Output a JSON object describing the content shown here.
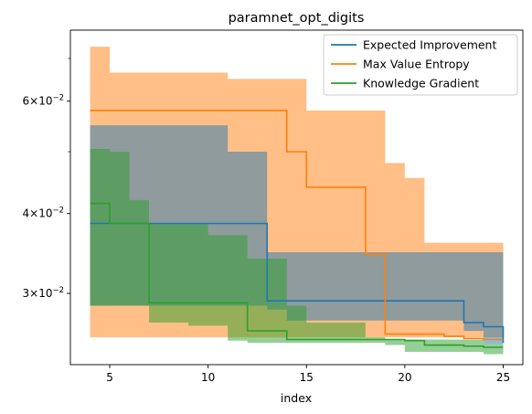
{
  "chart_data": {
    "type": "line",
    "title": "paramnet_opt_digits",
    "xlabel": "index",
    "ylabel": "",
    "yscale": "log",
    "xlim": [
      3.0,
      26.0
    ],
    "ylim": [
      0.0232,
      0.0775
    ],
    "x_ticks": [
      5,
      10,
      15,
      20,
      25
    ],
    "x_tick_labels": [
      "5",
      "10",
      "15",
      "20",
      "25"
    ],
    "y_major_ticks": [
      0.03,
      0.04,
      0.06
    ],
    "y_tick_labels": [
      {
        "mant": "3",
        "base": "10",
        "exp": "-2"
      },
      {
        "mant": "4",
        "base": "10",
        "exp": "-2"
      },
      {
        "mant": "6",
        "base": "10",
        "exp": "-2"
      }
    ],
    "y_minor_ticks": [
      0.05,
      0.07
    ],
    "grid": false,
    "legend_position": "top-right",
    "x": [
      4,
      5,
      6,
      7,
      8,
      9,
      10,
      11,
      12,
      13,
      14,
      15,
      16,
      17,
      18,
      19,
      20,
      21,
      22,
      23,
      24,
      25
    ],
    "series": [
      {
        "name": "Expected Improvement",
        "color": "#1f77b4",
        "values": [
          0.0386,
          0.0386,
          0.0386,
          0.0386,
          0.0386,
          0.0386,
          0.0386,
          0.0386,
          0.0386,
          0.0292,
          0.0292,
          0.0292,
          0.0292,
          0.0292,
          0.0292,
          0.0292,
          0.0292,
          0.0292,
          0.0292,
          0.027,
          0.0266,
          0.0251
        ],
        "lower": [
          0.0287,
          0.0287,
          0.0287,
          0.0287,
          0.0287,
          0.0287,
          0.0287,
          0.0287,
          0.0287,
          0.0283,
          0.0272,
          0.0272,
          0.0272,
          0.0272,
          0.0272,
          0.0272,
          0.0272,
          0.0272,
          0.0272,
          0.0262,
          0.025,
          0.025
        ],
        "upper": [
          0.055,
          0.055,
          0.055,
          0.055,
          0.055,
          0.055,
          0.055,
          0.05,
          0.05,
          0.0348,
          0.0348,
          0.0348,
          0.0348,
          0.0348,
          0.0348,
          0.0348,
          0.0348,
          0.0348,
          0.0348,
          0.0348,
          0.0348,
          0.027
        ]
      },
      {
        "name": "Max Value Entropy",
        "color": "#ff7f0e",
        "values": [
          0.058,
          0.058,
          0.058,
          0.058,
          0.058,
          0.058,
          0.058,
          0.058,
          0.058,
          0.058,
          0.05,
          0.044,
          0.044,
          0.044,
          0.0345,
          0.0259,
          0.0259,
          0.0259,
          0.0257,
          0.0255,
          0.0254,
          0.0254
        ],
        "lower": [
          0.0256,
          0.0256,
          0.0256,
          0.0256,
          0.0256,
          0.0256,
          0.0256,
          0.0256,
          0.0256,
          0.0256,
          0.0256,
          0.0256,
          0.0256,
          0.0256,
          0.0256,
          0.0256,
          0.0256,
          0.0256,
          0.0256,
          0.0256,
          0.0256,
          0.0248
        ],
        "upper": [
          0.073,
          0.0665,
          0.0665,
          0.0665,
          0.0665,
          0.0665,
          0.0665,
          0.065,
          0.065,
          0.065,
          0.065,
          0.058,
          0.058,
          0.058,
          0.058,
          0.048,
          0.0455,
          0.036,
          0.036,
          0.036,
          0.036,
          0.028
        ]
      },
      {
        "name": "Knowledge Gradient",
        "color": "#2ca02c",
        "values": [
          0.0415,
          0.0386,
          0.0386,
          0.029,
          0.029,
          0.029,
          0.029,
          0.029,
          0.0262,
          0.0262,
          0.0254,
          0.0254,
          0.0254,
          0.0254,
          0.0254,
          0.0254,
          0.0253,
          0.0249,
          0.0249,
          0.0248,
          0.0247,
          0.0247
        ],
        "lower": [
          0.0287,
          0.0287,
          0.0287,
          0.027,
          0.027,
          0.0267,
          0.0267,
          0.0253,
          0.0251,
          0.0251,
          0.0251,
          0.0251,
          0.0251,
          0.0251,
          0.0251,
          0.0249,
          0.0243,
          0.0243,
          0.0243,
          0.0243,
          0.0241,
          0.0241
        ],
        "upper": [
          0.0505,
          0.05,
          0.042,
          0.0386,
          0.0386,
          0.0386,
          0.037,
          0.037,
          0.034,
          0.034,
          0.0287,
          0.027,
          0.027,
          0.027,
          0.0256,
          0.0254,
          0.0254,
          0.0254,
          0.0254,
          0.0254,
          0.025,
          0.025
        ]
      }
    ]
  }
}
